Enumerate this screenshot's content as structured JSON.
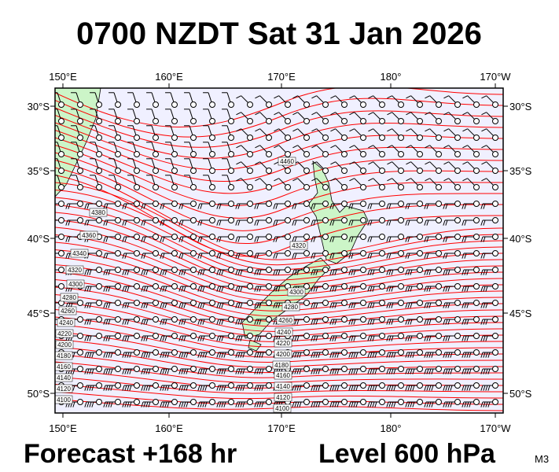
{
  "header": {
    "title": "0700 NZDT Sat 31 Jan 2026"
  },
  "map": {
    "top_lon_labels": [
      "150°E",
      "160°E",
      "170°E",
      "180°",
      "170°W"
    ],
    "bottom_lon_labels": [
      "150°E",
      "160°E",
      "170°E",
      "180°",
      "170°W"
    ],
    "left_lat_labels": [
      "30°S",
      "35°S",
      "40°S",
      "45°S",
      "50°S"
    ],
    "right_lat_labels": [
      "30°S",
      "35°S",
      "40°S",
      "45°S",
      "50°S"
    ],
    "contour_labels": [
      "4380",
      "4360",
      "4340",
      "4320",
      "4300",
      "4280",
      "4260",
      "4240",
      "4220",
      "4200",
      "4180",
      "4160",
      "4140",
      "4120",
      "4100",
      "4460",
      "4320",
      "4300",
      "4280",
      "4260",
      "4240",
      "4220",
      "4200",
      "4180",
      "4160",
      "4140",
      "4120",
      "4100"
    ]
  },
  "footer": {
    "forecast": "Forecast +168 hr",
    "level": "Level 600 hPa",
    "tag": "M3"
  }
}
